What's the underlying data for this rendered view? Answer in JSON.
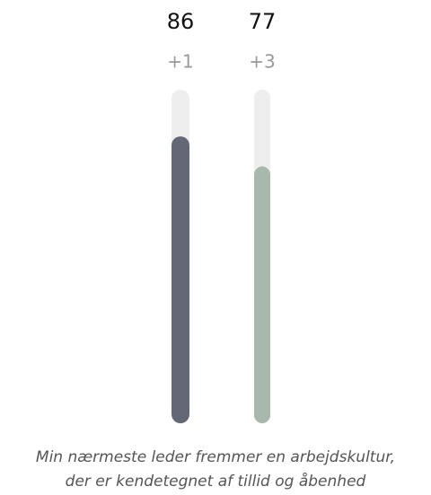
{
  "chart_data": {
    "type": "bar",
    "values": [
      86,
      77
    ],
    "colors": [
      "#636877",
      "#a9b8ad"
    ],
    "changes": [
      1,
      3
    ],
    "change_labels": [
      "+1",
      "+3"
    ],
    "ylim": [
      0,
      100
    ],
    "title_lines": [
      "Min nærmeste leder fremmer en arbejdskultur,",
      "der er kendetegnet af tillid og åbenhed"
    ]
  }
}
